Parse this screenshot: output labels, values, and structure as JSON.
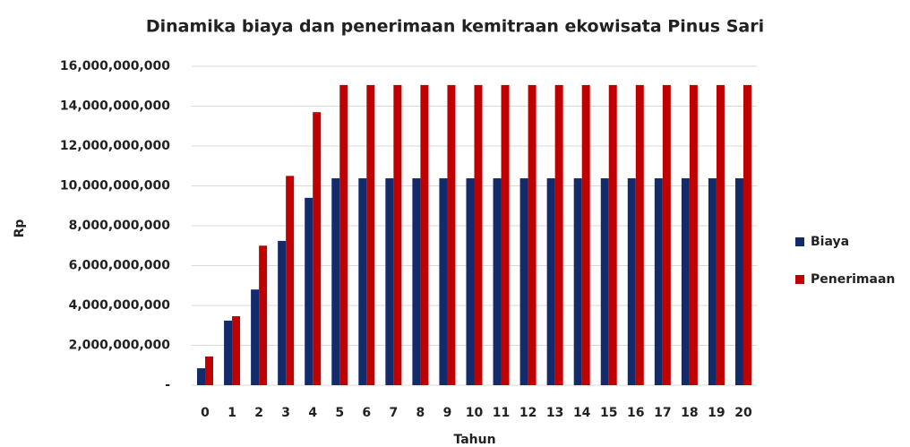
{
  "chart_data": {
    "type": "bar",
    "title": "Dinamika biaya dan penerimaan kemitraan ekowisata Pinus Sari",
    "x_label": "Tahun",
    "y_label": "Rp",
    "categories": [
      "0",
      "1",
      "2",
      "3",
      "4",
      "5",
      "6",
      "7",
      "8",
      "9",
      "10",
      "11",
      "12",
      "13",
      "14",
      "15",
      "16",
      "17",
      "18",
      "19",
      "20"
    ],
    "series": [
      {
        "name": "Biaya",
        "color": "#132a6b",
        "values": [
          850000000,
          3240000000,
          4800000000,
          7240000000,
          9400000000,
          10380000000,
          10380000000,
          10380000000,
          10380000000,
          10380000000,
          10380000000,
          10380000000,
          10380000000,
          10380000000,
          10380000000,
          10380000000,
          10380000000,
          10380000000,
          10380000000,
          10380000000,
          10380000000
        ]
      },
      {
        "name": "Penerimaan",
        "color": "#c00000",
        "values": [
          1440000000,
          3460000000,
          7000000000,
          10500000000,
          13700000000,
          15060000000,
          15060000000,
          15060000000,
          15060000000,
          15060000000,
          15060000000,
          15060000000,
          15060000000,
          15060000000,
          15060000000,
          15060000000,
          15060000000,
          15060000000,
          15060000000,
          15060000000,
          15060000000
        ]
      }
    ],
    "ylim": [
      0,
      16000000000
    ],
    "yticks": [
      {
        "value": 0,
        "label": "-"
      },
      {
        "value": 2000000000,
        "label": "2,000,000,000"
      },
      {
        "value": 4000000000,
        "label": "4,000,000,000"
      },
      {
        "value": 6000000000,
        "label": "6,000,000,000"
      },
      {
        "value": 8000000000,
        "label": "8,000,000,000"
      },
      {
        "value": 10000000000,
        "label": "10,000,000,000"
      },
      {
        "value": 12000000000,
        "label": "12,000,000,000"
      },
      {
        "value": 14000000000,
        "label": "14,000,000,000"
      },
      {
        "value": 16000000000,
        "label": "16,000,000,000"
      }
    ],
    "grid": true,
    "legend": "right"
  }
}
